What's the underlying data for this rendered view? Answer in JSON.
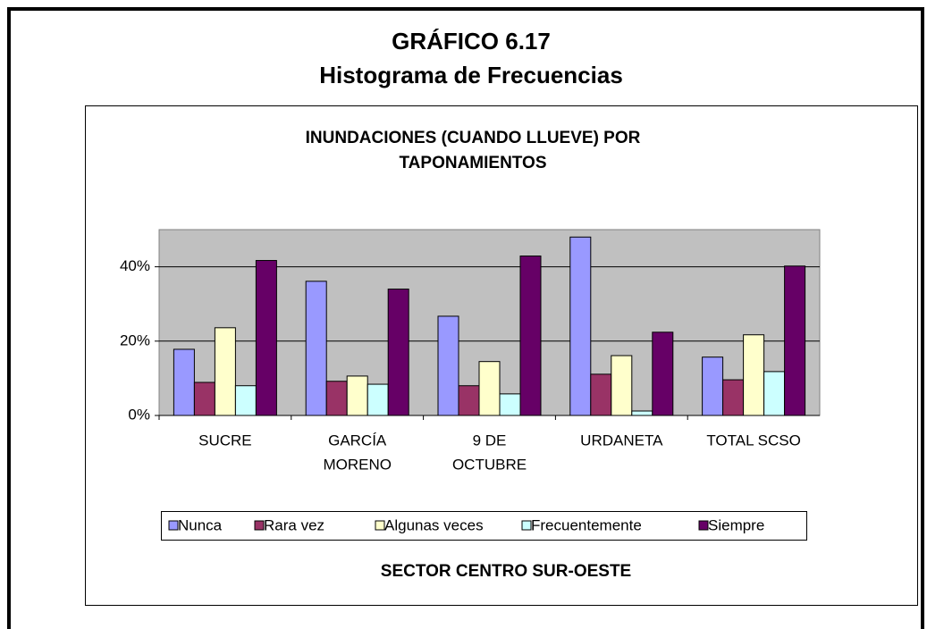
{
  "chart_data": {
    "type": "bar",
    "header": [
      "GRÁFICO 6.17",
      "Histograma de Frecuencias"
    ],
    "title": [
      "INUNDACIONES (CUANDO LLUEVE) POR",
      "TAPONAMIENTOS"
    ],
    "xlabel": "SECTOR CENTRO SUR-OESTE",
    "categories": [
      [
        "SUCRE"
      ],
      [
        "GARCÍA",
        "MORENO"
      ],
      [
        "9 DE",
        "OCTUBRE"
      ],
      [
        "URDANETA"
      ],
      [
        "TOTAL SCSO"
      ]
    ],
    "series": [
      {
        "name": "Nunca",
        "color": "#9999ff",
        "values": [
          17.8,
          36.1,
          26.7,
          48.0,
          15.7
        ]
      },
      {
        "name": "Rara vez",
        "color": "#993366",
        "values": [
          8.9,
          9.2,
          8.0,
          11.1,
          9.6
        ]
      },
      {
        "name": "Algunas veces",
        "color": "#ffffcc",
        "values": [
          23.6,
          10.6,
          14.5,
          16.1,
          21.7
        ]
      },
      {
        "name": "Frecuentemente",
        "color": "#ccffff",
        "values": [
          8.0,
          8.4,
          5.8,
          1.2,
          11.8
        ]
      },
      {
        "name": "Siempre",
        "color": "#660066",
        "values": [
          41.7,
          34.0,
          42.9,
          22.4,
          40.2
        ]
      }
    ],
    "ylim": [
      0,
      50
    ],
    "yticks": [
      {
        "value": 0,
        "label": "0%"
      },
      {
        "value": 20,
        "label": "20%"
      },
      {
        "value": 40,
        "label": "40%"
      }
    ],
    "grid": true,
    "legend": "bottom"
  }
}
